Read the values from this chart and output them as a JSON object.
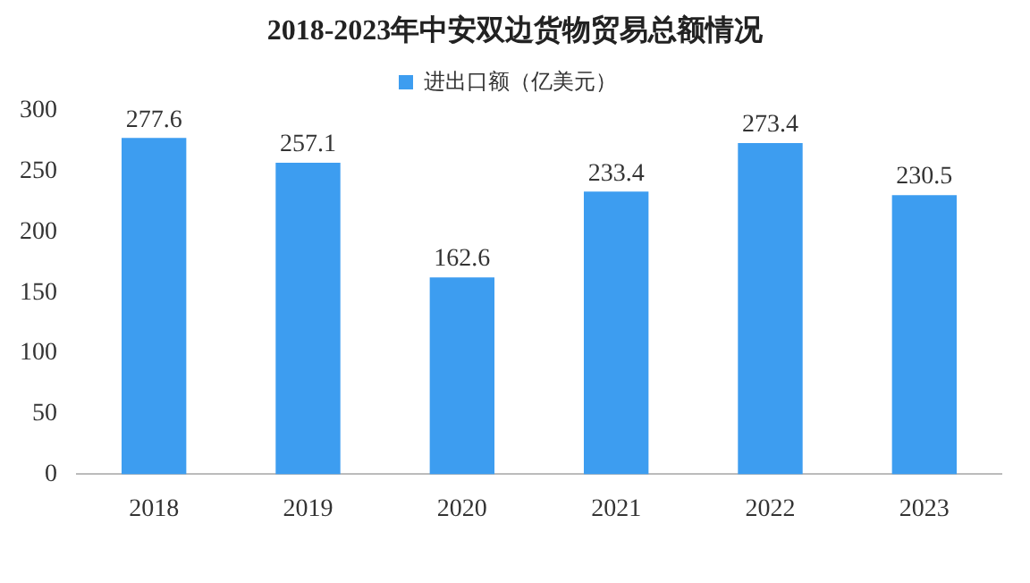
{
  "chart_data": {
    "type": "bar",
    "title": "2018-2023年中安双边货物贸易总额情况",
    "categories": [
      "2018",
      "2019",
      "2020",
      "2021",
      "2022",
      "2023"
    ],
    "series": [
      {
        "name": "进出口额（亿美元）",
        "color": "#3d9df0",
        "values": [
          277.6,
          257.1,
          162.6,
          233.4,
          273.4,
          230.5
        ]
      }
    ],
    "ylim": [
      0,
      300
    ],
    "yticks": [
      0,
      50,
      100,
      150,
      200,
      250,
      300
    ],
    "grid": false,
    "legend": "top",
    "data_labels": true
  }
}
